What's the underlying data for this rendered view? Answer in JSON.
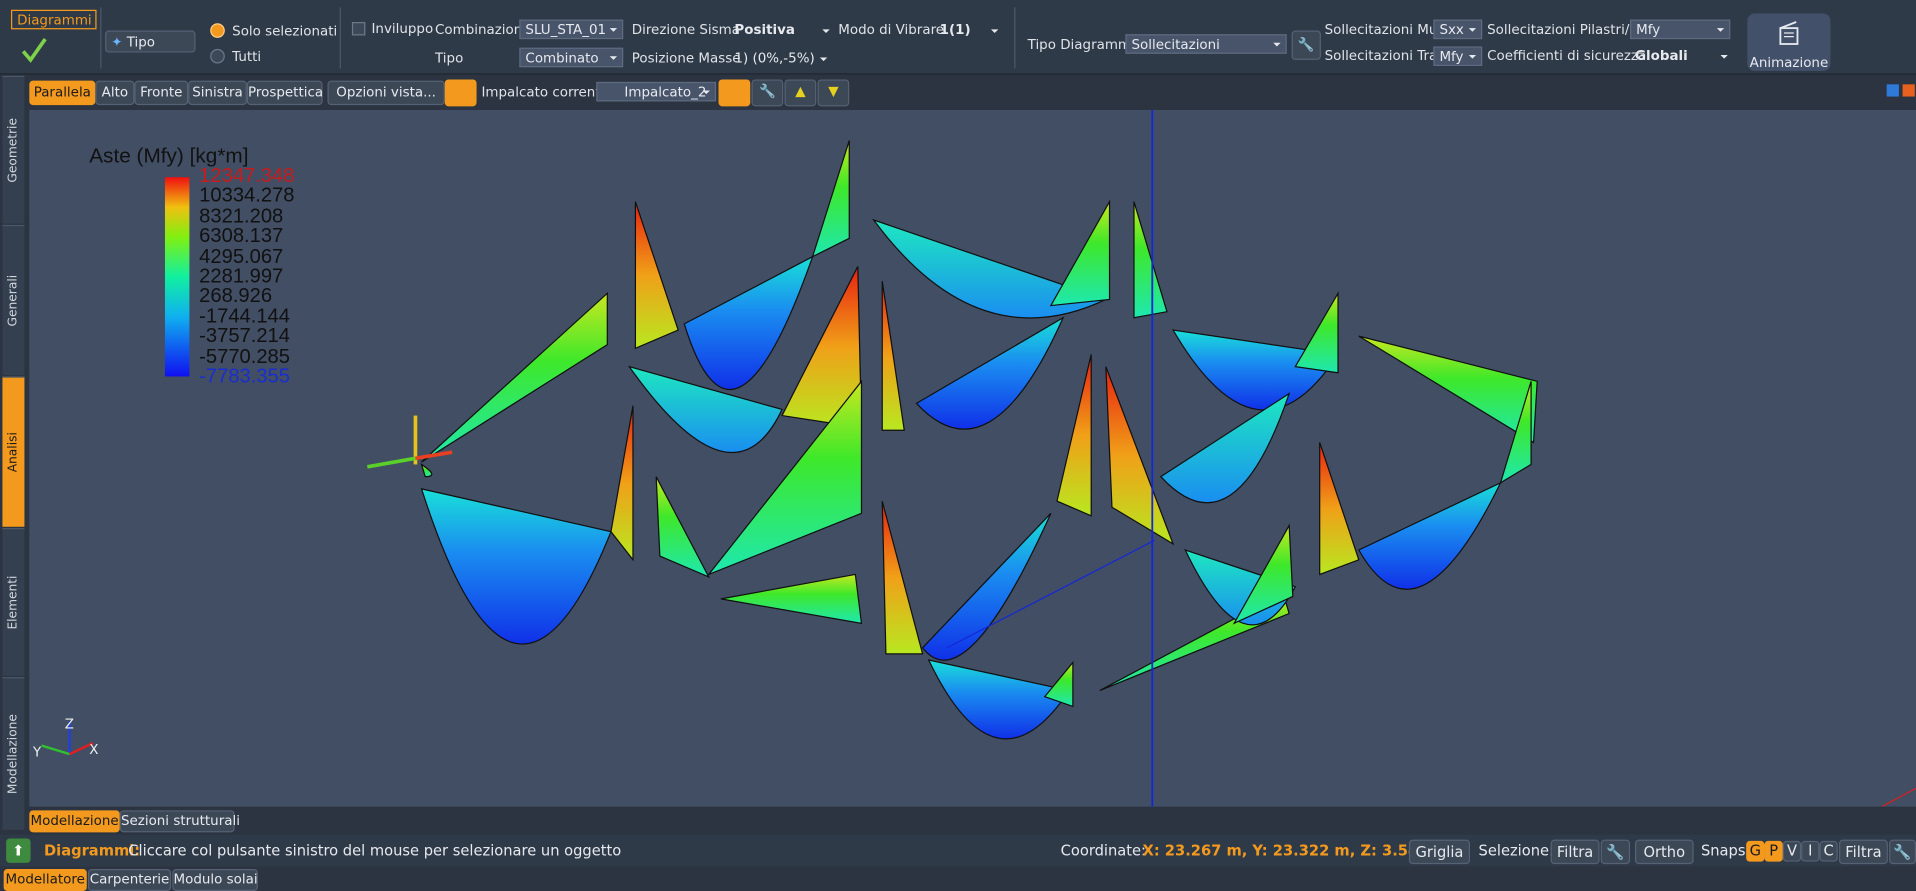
{
  "toolbar": {
    "tab": "Diagrammi",
    "tipo_button": "Tipo",
    "solo_selezionati": "Solo selezionati",
    "tutti": "Tutti",
    "inviluppo": "Inviluppo",
    "combinazione_label": "Combinazione",
    "combinazione": "SLU_STA_01",
    "tipo_label": "Tipo",
    "tipo_value": "Combinato",
    "direzione_sisma_label": "Direzione Sisma",
    "direzione_sisma": "Positiva",
    "posizione_masse_label": "Posizione Masse",
    "posizione_masse": "1) (0%,-5%)",
    "modo_label": "Modo di Vibrare",
    "modo": "1(1)",
    "tipo_diagramma_label": "Tipo Diagramma",
    "tipo_diagramma": "Sollecitazioni",
    "sollecitazioni_muri_label": "Sollecitazioni Muri",
    "sollecitazioni_muri": "Sxx",
    "sollecitazioni_travi_label": "Sollecitazioni Travi",
    "sollecitazioni_travi": "Mfy",
    "sollecitazioni_pilastri_label": "Sollecitazioni Pilastri/Pali",
    "sollecitazioni_pilastri": "Mfy",
    "coefficienti_label": "Coefficienti di sicurezza",
    "coefficienti": "Globali",
    "animazione": "Animazione"
  },
  "view_bar": {
    "views": [
      "Parallela",
      "Alto",
      "Fronte",
      "Sinistra",
      "Prospettica"
    ],
    "opzioni": "Opzioni vista...",
    "impalcato_label": "Impalcato corrente:",
    "impalcato": "Impalcato_2"
  },
  "side_tabs": [
    "Geometrie",
    "Generali",
    "Analisi",
    "Elementi",
    "Modellazione"
  ],
  "legend": {
    "title": "Aste (Mfy) [kg*m]",
    "labels": [
      "12347.348",
      "10334.278",
      "8321.208",
      "6308.137",
      "4295.067",
      "2281.997",
      "268.926",
      "-1744.144",
      "-3757.214",
      "-5770.285",
      "-7783.355"
    ]
  },
  "axes": {
    "z": "Z",
    "y": "Y",
    "x": "X"
  },
  "bottom_tabs": [
    "Modellazione",
    "Sezioni strutturali"
  ],
  "status": {
    "mode": "Diagrammi:",
    "message": "Cliccare col pulsante sinistro del mouse per selezionare un oggetto",
    "coordinate_label": "Coordinate:",
    "coordinates": "X: 23.267 m, Y: 23.322 m, Z: 3.540 m",
    "griglia": "Griglia",
    "selezione_label": "Selezione:",
    "filtra": "Filtra",
    "ortho": "Ortho",
    "snaps_label": "Snaps:",
    "snaps": [
      "G",
      "P",
      "V",
      "I",
      "C"
    ],
    "filtra_snaps": "Filtra"
  },
  "app_tabs": [
    "Modellatore",
    "Carpenterie",
    "Modulo solai"
  ]
}
